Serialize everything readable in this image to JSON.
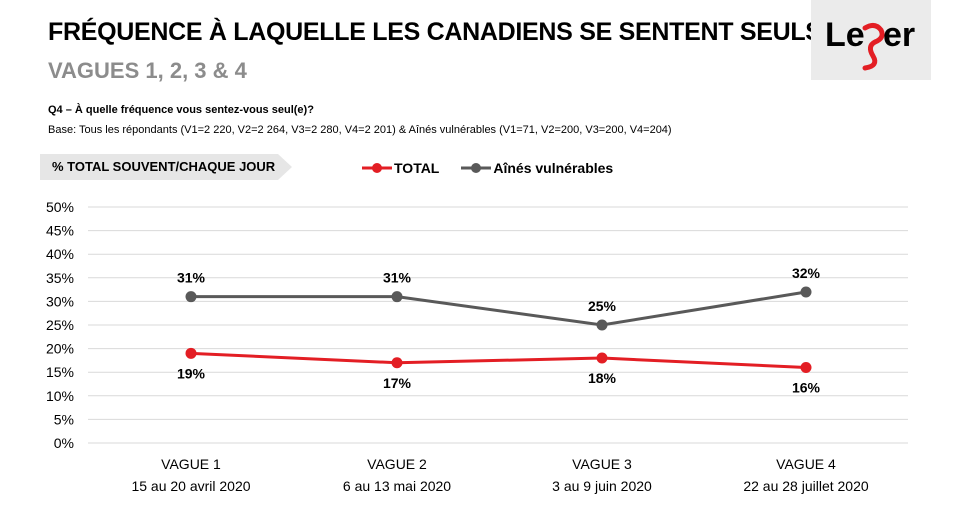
{
  "header": {
    "title": "FRÉQUENCE À LAQUELLE LES CANADIENS SE SENTENT SEULS",
    "subtitle": "VAGUES 1, 2, 3 & 4",
    "logo_text": "Leger"
  },
  "question": {
    "text": "Q4 – À quelle fréquence vous sentez-vous seul(e)?",
    "base": "Base: Tous les répondants (V1=2 220, V2=2 264, V3=2 280, V4=2 201) & Aînés vulnérables (V1=71, V2=200, V3=200, V4=204)"
  },
  "measure_label": "% TOTAL SOUVENT/CHAQUE JOUR",
  "colors": {
    "total": "#e31e24",
    "aines": "#595959",
    "grid": "#d9d9d9",
    "tag_bg": "#e6e6e6",
    "logo_accent": "#e31e24"
  },
  "chart_data": {
    "type": "line",
    "categories": [
      "VAGUE 1",
      "VAGUE 2",
      "VAGUE 3",
      "VAGUE 4"
    ],
    "category_dates": [
      "15 au 20 avril 2020",
      "6 au 13 mai 2020",
      "3 au 9 juin 2020",
      "22 au 28 juillet 2020"
    ],
    "series": [
      {
        "name": "TOTAL",
        "values": [
          19,
          17,
          18,
          16
        ],
        "labels": [
          "19%",
          "17%",
          "18%",
          "16%"
        ],
        "label_position": "below"
      },
      {
        "name": "Aînés vulnérables",
        "values": [
          31,
          31,
          25,
          32
        ],
        "labels": [
          "31%",
          "31%",
          "25%",
          "32%"
        ],
        "label_position": "above"
      }
    ],
    "ylim": [
      0,
      50
    ],
    "yticks": [
      "0%",
      "5%",
      "10%",
      "15%",
      "20%",
      "25%",
      "30%",
      "35%",
      "40%",
      "45%",
      "50%"
    ],
    "grid": true,
    "legend_position": "top"
  }
}
